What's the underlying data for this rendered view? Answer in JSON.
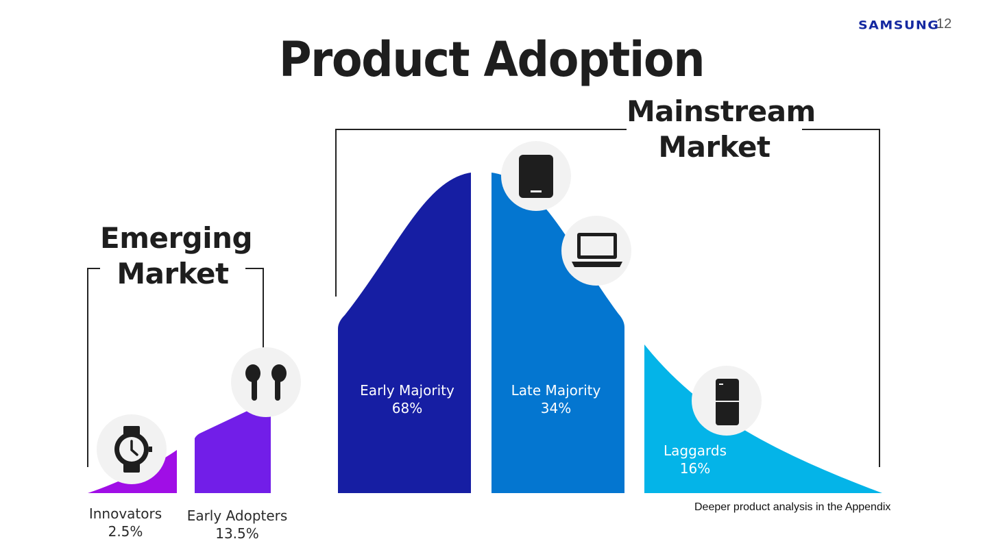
{
  "header": {
    "logo": "SAMSUNG",
    "page_number": "12",
    "title": "Product Adoption"
  },
  "groups": {
    "emerging": [
      "Emerging",
      "Market"
    ],
    "mainstream": [
      "Mainstream",
      "Market"
    ]
  },
  "segments": [
    {
      "name": "Innovators",
      "value": "2.5%",
      "color": "#a00ee6",
      "icon": "smartwatch-icon"
    },
    {
      "name": "Early Adopters",
      "value": "13.5%",
      "color": "#721ee8",
      "icon": "earbuds-icon"
    },
    {
      "name": "Early Majority",
      "value": "68%",
      "color": "#161ea3",
      "icon": ""
    },
    {
      "name": "Late Majority",
      "value": "34%",
      "color": "#0476d0",
      "icon": "tablet-icon, laptop-icon"
    },
    {
      "name": "Laggards",
      "value": "16%",
      "color": "#04b4e8",
      "icon": "fridge-icon"
    }
  ],
  "footnote": "Deeper product analysis in the Appendix"
}
